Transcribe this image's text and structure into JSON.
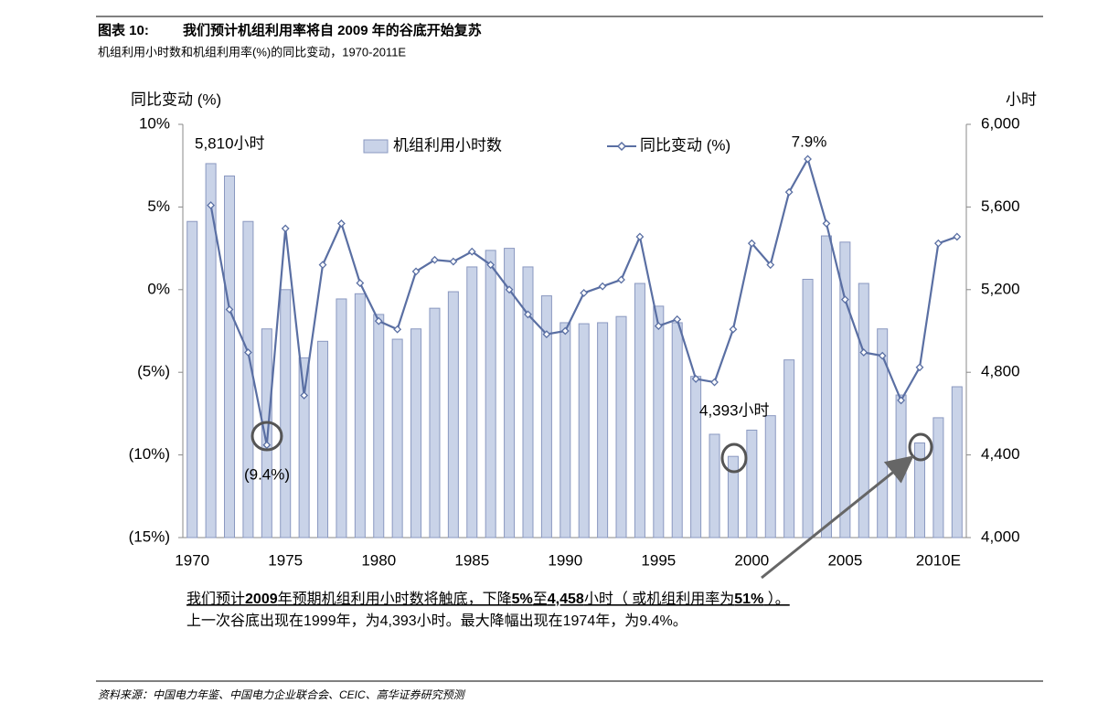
{
  "header": {
    "figure": "图表 10:"
  },
  "chart_data": {
    "type": "bar-line",
    "title": "我们预计机组利用率将自 2009 年的谷底开始复苏",
    "subtitle": "机组利用小时数和机组利用率(%)的同比变动，1970-2011E",
    "ylabel": "同比变动 (%)",
    "y2label": "小时",
    "categories": [
      "1970",
      null,
      null,
      null,
      null,
      "1975",
      null,
      null,
      null,
      null,
      "1980",
      null,
      null,
      null,
      null,
      "1985",
      null,
      null,
      null,
      null,
      "1990",
      null,
      null,
      null,
      null,
      "1995",
      null,
      null,
      null,
      null,
      "2000",
      null,
      null,
      null,
      null,
      "2005",
      null,
      null,
      null,
      null,
      "2010E",
      null
    ],
    "series": [
      {
        "name": "机组利用小时数",
        "type": "bar",
        "axis": "y2",
        "color": "#c9d3e8",
        "values": [
          5530,
          5810,
          5750,
          5530,
          5010,
          5200,
          4870,
          4950,
          5155,
          5180,
          5080,
          4960,
          5010,
          5110,
          5190,
          5310,
          5390,
          5400,
          5310,
          5170,
          5040,
          5035,
          5040,
          5070,
          5230,
          5120,
          5040,
          4780,
          4500,
          4393,
          4520,
          4590,
          4860,
          5250,
          5460,
          5430,
          5230,
          5010,
          4690,
          4458,
          4580,
          4730
        ]
      },
      {
        "name": "同比变动 (%)",
        "type": "line",
        "axis": "y",
        "color": "#5a6fa3",
        "values": [
          null,
          5.1,
          -1.2,
          -3.8,
          -9.4,
          3.7,
          -6.4,
          1.5,
          4.0,
          0.4,
          -1.9,
          -2.4,
          1.1,
          1.8,
          1.7,
          2.3,
          1.5,
          0.0,
          -1.5,
          -2.7,
          -2.5,
          -0.2,
          0.2,
          0.6,
          3.2,
          -2.2,
          -1.8,
          -5.4,
          -5.6,
          -2.4,
          2.8,
          1.5,
          5.9,
          7.9,
          4.0,
          -0.6,
          -3.8,
          -4.0,
          -6.7,
          -4.7,
          2.8,
          3.2
        ]
      }
    ],
    "ylim": [
      -15,
      10
    ],
    "yticks": [
      {
        "value": 10,
        "label": "10%"
      },
      {
        "value": 5,
        "label": "5%"
      },
      {
        "value": 0,
        "label": "0%"
      },
      {
        "value": -5,
        "label": "(5%)"
      },
      {
        "value": -10,
        "label": "(10%)"
      },
      {
        "value": -15,
        "label": "(15%)"
      }
    ],
    "y2lim": [
      4000,
      6000
    ],
    "y2ticks": [
      {
        "value": 6000,
        "label": "6,000"
      },
      {
        "value": 5600,
        "label": "5,600"
      },
      {
        "value": 5200,
        "label": "5,200"
      },
      {
        "value": 4800,
        "label": "4,800"
      },
      {
        "value": 4400,
        "label": "4,400"
      },
      {
        "value": 4000,
        "label": "4,000"
      }
    ],
    "annotations": [
      "5,810小时",
      "7.9%",
      "(9.4%)",
      "4,393小时"
    ]
  },
  "notes": [
    [
      "我们预计",
      "2009",
      "年预期机组利用小时数将触底，下降",
      "5%",
      "至",
      "4,458",
      "小时（ 或机组利用率为",
      "51%",
      " ）。"
    ],
    "上一次谷底出现在1999年，为4,393小时。最大降幅出现在1974年，为9.4%。"
  ],
  "footer": {
    "source": "资料来源：中国电力年鉴、中国电力企业联合会、CEIC、高华证券研究预测"
  }
}
